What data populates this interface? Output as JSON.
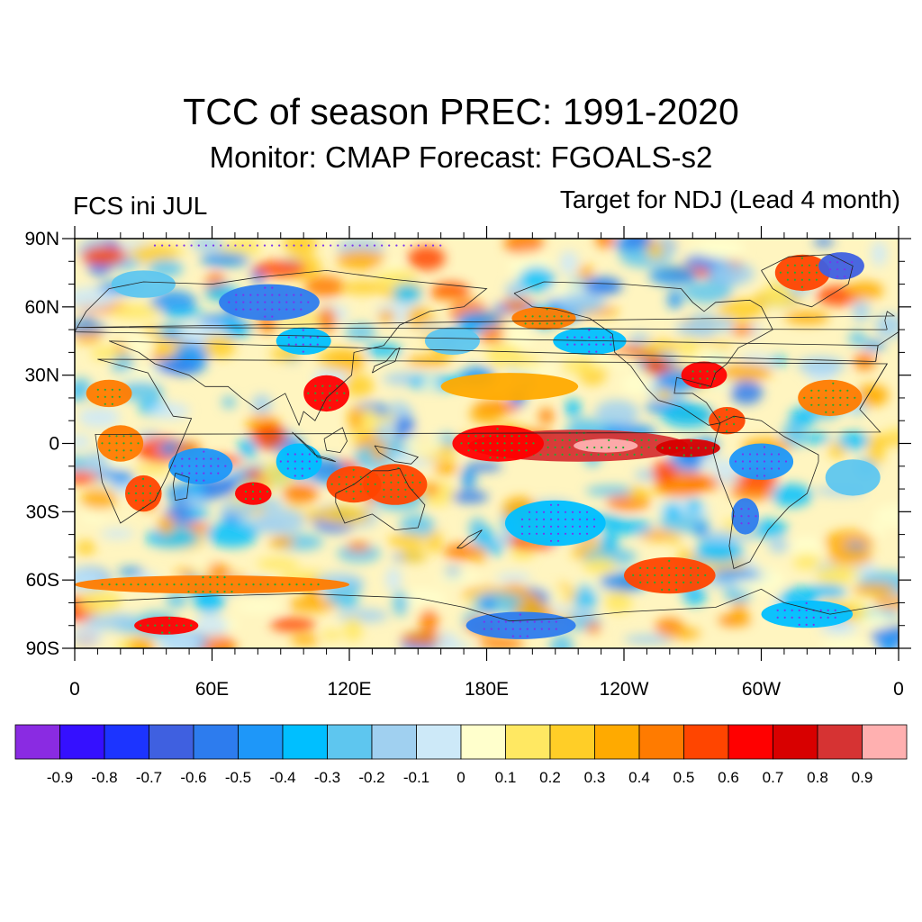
{
  "header": {
    "title": "TCC of season PREC: 1991-2020",
    "subtitle": "Monitor: CMAP   Forecast: FGOALS-s2",
    "left_label": "FCS ini JUL",
    "right_label": "Target for NDJ (Lead 4 month)"
  },
  "map": {
    "projection": "cylindrical-equidistant",
    "lon_range": [
      0,
      360
    ],
    "lat_range": [
      -90,
      90
    ],
    "lat_ticks": [
      {
        "lat": 90,
        "label": "90N"
      },
      {
        "lat": 60,
        "label": "60N"
      },
      {
        "lat": 30,
        "label": "30N"
      },
      {
        "lat": 0,
        "label": "0"
      },
      {
        "lat": -30,
        "label": "30S"
      },
      {
        "lat": -60,
        "label": "60S"
      },
      {
        "lat": -90,
        "label": "90S"
      }
    ],
    "lon_ticks": [
      {
        "lon": 0,
        "label": "0"
      },
      {
        "lon": 60,
        "label": "60E"
      },
      {
        "lon": 120,
        "label": "120E"
      },
      {
        "lon": 180,
        "label": "180E"
      },
      {
        "lon": 240,
        "label": "120W"
      },
      {
        "lon": 300,
        "label": "60W"
      },
      {
        "lon": 360,
        "label": "0"
      }
    ],
    "stipple_meaning_colors": {
      "positive_significant": "#22aa33",
      "negative_significant": "#7a33ee"
    },
    "features": [
      {
        "name": "equatorial-pacific-core",
        "lon": 220,
        "lat": -1,
        "rlon": 48,
        "rlat": 7,
        "value": 0.8
      },
      {
        "name": "equatorial-pacific-peak",
        "lon": 232,
        "lat": -1,
        "rlon": 14,
        "rlat": 3,
        "value": 0.9
      },
      {
        "name": "central-pacific-west",
        "lon": 185,
        "lat": 0,
        "rlon": 20,
        "rlat": 8,
        "value": 0.6
      },
      {
        "name": "pacific-tongue-east",
        "lon": 268,
        "lat": -2,
        "rlon": 14,
        "rlat": 4,
        "value": 0.7
      },
      {
        "name": "north-pacific-band",
        "lon": 190,
        "lat": 25,
        "rlon": 30,
        "rlat": 6,
        "value": 0.3
      },
      {
        "name": "maritime-east",
        "lon": 140,
        "lat": -18,
        "rlon": 14,
        "rlat": 9,
        "value": 0.5
      },
      {
        "name": "australia-west",
        "lon": 122,
        "lat": -18,
        "rlon": 12,
        "rlat": 8,
        "value": 0.5
      },
      {
        "name": "south-china-sea",
        "lon": 110,
        "lat": 22,
        "rlon": 10,
        "rlat": 8,
        "value": 0.6
      },
      {
        "name": "indian-ocean-east",
        "lon": 98,
        "lat": -8,
        "rlon": 10,
        "rlat": 8,
        "value": -0.4
      },
      {
        "name": "indian-ocean-west",
        "lon": 55,
        "lat": -10,
        "rlon": 14,
        "rlat": 8,
        "value": -0.5
      },
      {
        "name": "south-india",
        "lon": 78,
        "lat": -22,
        "rlon": 8,
        "rlat": 5,
        "value": 0.6
      },
      {
        "name": "madagascar-region",
        "lon": 30,
        "lat": -22,
        "rlon": 8,
        "rlat": 8,
        "value": 0.5
      },
      {
        "name": "siberia-blue",
        "lon": 85,
        "lat": 62,
        "rlon": 22,
        "rlat": 8,
        "value": -0.6
      },
      {
        "name": "eurasia-south",
        "lon": 100,
        "lat": 45,
        "rlon": 12,
        "rlat": 6,
        "value": -0.4
      },
      {
        "name": "greenland",
        "lon": 318,
        "lat": 75,
        "rlon": 12,
        "rlat": 8,
        "value": 0.5
      },
      {
        "name": "north-atlantic-blue",
        "lon": 335,
        "lat": 78,
        "rlon": 10,
        "rlat": 6,
        "value": -0.7
      },
      {
        "name": "gulf-mexico",
        "lon": 275,
        "lat": 30,
        "rlon": 10,
        "rlat": 6,
        "value": 0.6
      },
      {
        "name": "caribbean",
        "lon": 285,
        "lat": 10,
        "rlon": 8,
        "rlat": 6,
        "value": 0.5
      },
      {
        "name": "amazon",
        "lon": 300,
        "lat": -8,
        "rlon": 14,
        "rlat": 8,
        "value": -0.5
      },
      {
        "name": "south-america-south",
        "lon": 293,
        "lat": -32,
        "rlon": 6,
        "rlat": 8,
        "value": -0.6
      },
      {
        "name": "east-pacific-north",
        "lon": 225,
        "lat": 45,
        "rlon": 16,
        "rlat": 6,
        "value": -0.4
      },
      {
        "name": "alaska-gulf",
        "lon": 205,
        "lat": 55,
        "rlon": 14,
        "rlat": 5,
        "value": 0.4
      },
      {
        "name": "south-pacific-blue",
        "lon": 210,
        "lat": -35,
        "rlon": 22,
        "rlat": 10,
        "value": -0.4
      },
      {
        "name": "southern-ocean-band",
        "lon": 60,
        "lat": -62,
        "rlon": 60,
        "rlat": 4,
        "value": 0.4
      },
      {
        "name": "antarctica-ross",
        "lon": 195,
        "lat": -80,
        "rlon": 24,
        "rlat": 6,
        "value": -0.6
      },
      {
        "name": "southeast-pacific",
        "lon": 260,
        "lat": -58,
        "rlon": 20,
        "rlat": 8,
        "value": 0.5
      },
      {
        "name": "north-africa",
        "lon": 15,
        "lat": 22,
        "rlon": 10,
        "rlat": 6,
        "value": 0.4
      },
      {
        "name": "central-africa",
        "lon": 20,
        "lat": 0,
        "rlon": 10,
        "rlat": 8,
        "value": 0.4
      },
      {
        "name": "arctic-europe",
        "lon": 30,
        "lat": 70,
        "rlon": 14,
        "rlat": 6,
        "value": -0.3
      },
      {
        "name": "atlantic-central",
        "lon": 330,
        "lat": 20,
        "rlon": 14,
        "rlat": 8,
        "value": 0.4
      },
      {
        "name": "atlantic-south",
        "lon": 340,
        "lat": -15,
        "rlon": 12,
        "rlat": 8,
        "value": -0.3
      },
      {
        "name": "north-pacific-west",
        "lon": 165,
        "lat": 45,
        "rlon": 12,
        "rlat": 6,
        "value": -0.3
      },
      {
        "name": "antarctic-weddell",
        "lon": 320,
        "lat": -75,
        "rlon": 20,
        "rlat": 6,
        "value": -0.4
      },
      {
        "name": "antarctic-east",
        "lon": 40,
        "lat": -80,
        "rlon": 14,
        "rlat": 4,
        "value": 0.6
      }
    ]
  },
  "colorbar": {
    "colors": [
      "#8a2be2",
      "#3510ff",
      "#1c34ff",
      "#3f60e0",
      "#2d7cee",
      "#1e97f9",
      "#00bfff",
      "#5ec6ef",
      "#a0d0f0",
      "#cde9f8",
      "#ffffcc",
      "#ffe862",
      "#ffce27",
      "#ffaa00",
      "#ff7b00",
      "#ff4500",
      "#ff0000",
      "#d80000",
      "#d63333",
      "#ffb0b0"
    ],
    "labels": [
      "-0.9",
      "-0.8",
      "-0.7",
      "-0.6",
      "-0.5",
      "-0.4",
      "-0.3",
      "-0.2",
      "-0.1",
      "0",
      "0.1",
      "0.2",
      "0.3",
      "0.4",
      "0.5",
      "0.6",
      "0.7",
      "0.8",
      "0.9"
    ]
  }
}
